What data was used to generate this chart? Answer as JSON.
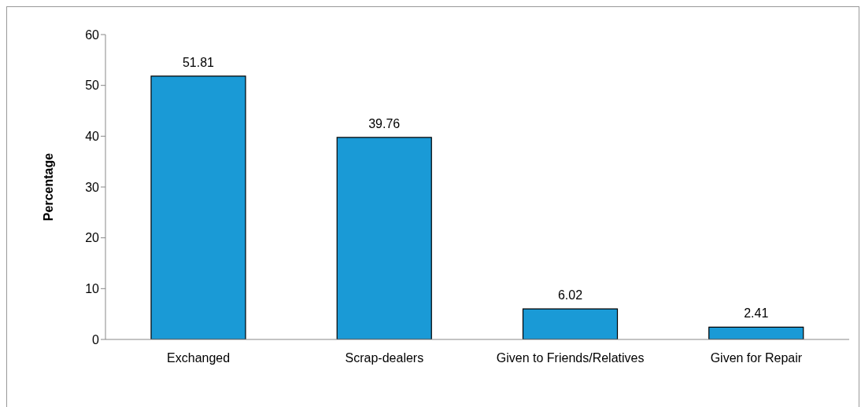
{
  "chart_data": {
    "type": "bar",
    "ylabel": "Percentage",
    "categories": [
      "Exchanged",
      "Scrap-dealers",
      "Given to Friends/Relatives",
      "Given for Repair"
    ],
    "values": [
      51.81,
      39.76,
      6.02,
      2.41
    ],
    "color": "#1a9ad6",
    "ylim": [
      0,
      60
    ],
    "yticks": [
      0,
      10,
      20,
      30,
      40,
      50,
      60
    ],
    "data_labels": true,
    "grid": false,
    "legend": false
  }
}
